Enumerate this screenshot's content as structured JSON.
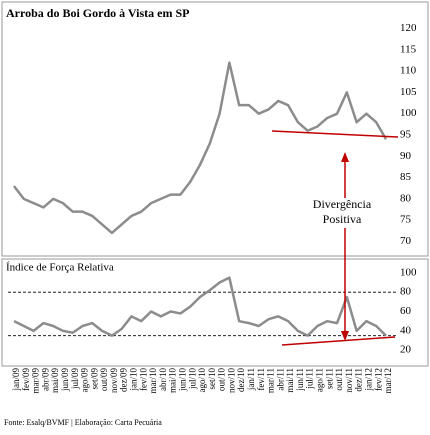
{
  "chart_data": [
    {
      "type": "line",
      "title": "Arroba do Boi Gordo à Vista em SP",
      "series": [
        {
          "color": "#8c8c8c",
          "values": [
            83,
            80,
            79,
            78,
            80,
            79,
            77,
            77,
            76,
            74,
            72,
            74,
            76,
            77,
            79,
            80,
            81,
            81,
            84,
            88,
            93,
            100,
            112,
            102,
            102,
            100,
            101,
            103,
            102,
            98,
            96,
            97,
            99,
            100,
            105,
            98,
            100,
            98,
            94
          ]
        }
      ],
      "ylim": [
        68,
        122
      ],
      "yticks": [
        70,
        75,
        80,
        85,
        90,
        95,
        100,
        105,
        110,
        115,
        120
      ],
      "annotations": [
        "Divergência",
        "Positiva"
      ]
    },
    {
      "type": "line",
      "title": "Índice de Força Relativa",
      "categories": [
        "jan/09",
        "fev/09",
        "mar/09",
        "abr/09",
        "mai/09",
        "jun/09",
        "jul/09",
        "ago/09",
        "set/09",
        "out/09",
        "nov/09",
        "dez/09",
        "jan/10",
        "fev/10",
        "mar/10",
        "abr/10",
        "mai/10",
        "jun/10",
        "jul/10",
        "ago/10",
        "set/10",
        "out/10",
        "nov/10",
        "dez/10",
        "jan/11",
        "fev/11",
        "mar/11",
        "abr/11",
        "mai/11",
        "jun/11",
        "jul/11",
        "ago/11",
        "set/11",
        "out/11",
        "nov/11",
        "dez/11",
        "jan/12",
        "fev/12",
        "mar/12"
      ],
      "series": [
        {
          "color": "#8c8c8c",
          "values": [
            50,
            45,
            40,
            48,
            45,
            40,
            38,
            45,
            48,
            40,
            35,
            42,
            55,
            50,
            60,
            55,
            60,
            58,
            65,
            75,
            82,
            90,
            95,
            50,
            48,
            45,
            52,
            55,
            50,
            40,
            35,
            45,
            50,
            48,
            75,
            40,
            50,
            45,
            35
          ]
        }
      ],
      "ylim": [
        15,
        105
      ],
      "yticks": [
        20,
        40,
        60,
        80,
        100
      ],
      "reference_lines": [
        80,
        35
      ]
    }
  ],
  "source": "Fonte: Esalq/BVMF | Elaboração: Carta Pecuária"
}
